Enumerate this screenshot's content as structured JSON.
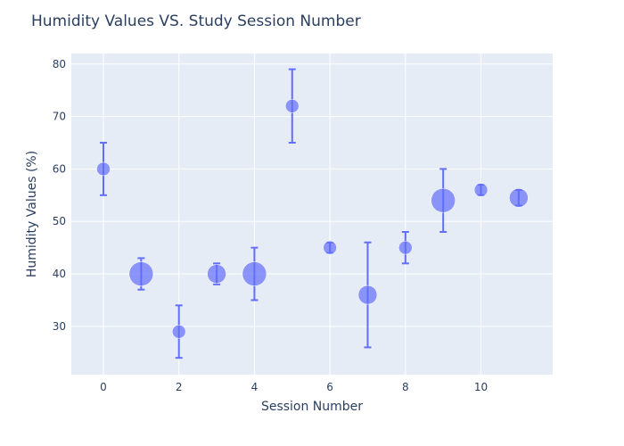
{
  "chart_data": {
    "type": "scatter",
    "title": "Humidity Values VS. Study Session Number",
    "xlabel": "Session Number",
    "ylabel": "Humidity Values (%)",
    "xlim": [
      -0.85,
      11.9
    ],
    "ylim": [
      20.8,
      82
    ],
    "x_ticks": [
      0,
      2,
      4,
      6,
      8,
      10
    ],
    "y_ticks": [
      30,
      40,
      50,
      60,
      70,
      80
    ],
    "grid": true,
    "legend": false,
    "colors": {
      "plot_bg": "#e5ecf6",
      "grid": "#ffffff",
      "marker": "#636efa",
      "text": "#2a3f5f"
    },
    "points": [
      {
        "x": 0,
        "y": 60,
        "err_low": 5,
        "err_high": 5,
        "size": 1
      },
      {
        "x": 1,
        "y": 40,
        "err_low": 3,
        "err_high": 3,
        "size": 3
      },
      {
        "x": 2,
        "y": 29,
        "err_low": 5,
        "err_high": 5,
        "size": 1
      },
      {
        "x": 3,
        "y": 40,
        "err_low": 2,
        "err_high": 2,
        "size": 2
      },
      {
        "x": 4,
        "y": 40,
        "err_low": 5,
        "err_high": 5,
        "size": 3
      },
      {
        "x": 5,
        "y": 72,
        "err_low": 7,
        "err_high": 7,
        "size": 1
      },
      {
        "x": 6,
        "y": 45,
        "err_low": 1,
        "err_high": 1,
        "size": 1
      },
      {
        "x": 7,
        "y": 36,
        "err_low": 10,
        "err_high": 10,
        "size": 2
      },
      {
        "x": 8,
        "y": 45,
        "err_low": 3,
        "err_high": 3,
        "size": 1
      },
      {
        "x": 9,
        "y": 54,
        "err_low": 6,
        "err_high": 6,
        "size": 3
      },
      {
        "x": 10,
        "y": 56,
        "err_low": 1,
        "err_high": 1,
        "size": 1
      },
      {
        "x": 11,
        "y": 54.5,
        "err_low": 1.5,
        "err_high": 1.5,
        "size": 2
      }
    ]
  }
}
